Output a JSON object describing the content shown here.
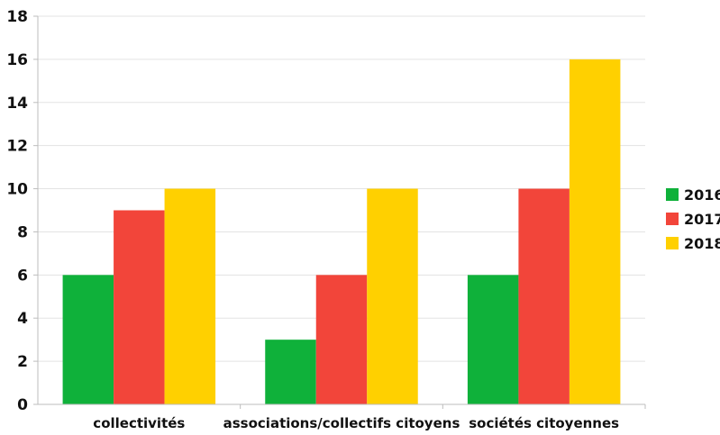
{
  "chart_data": {
    "type": "bar",
    "categories": [
      "collectivités",
      "associations/collectifs citoyens",
      "sociétés citoyennes"
    ],
    "series": [
      {
        "name": "2016",
        "values": [
          6,
          3,
          6
        ],
        "color": "#0fb13a"
      },
      {
        "name": "2017",
        "values": [
          9,
          6,
          10
        ],
        "color": "#f2453a"
      },
      {
        "name": "2018",
        "values": [
          10,
          10,
          16
        ],
        "color": "#ffd000"
      }
    ],
    "title": "",
    "xlabel": "",
    "ylabel": "",
    "ylim": [
      0,
      18
    ],
    "yticks": [
      "0",
      "2",
      "4",
      "6",
      "8",
      "10",
      "12",
      "14",
      "16",
      "18"
    ],
    "grid": true,
    "legend_position": "right"
  }
}
